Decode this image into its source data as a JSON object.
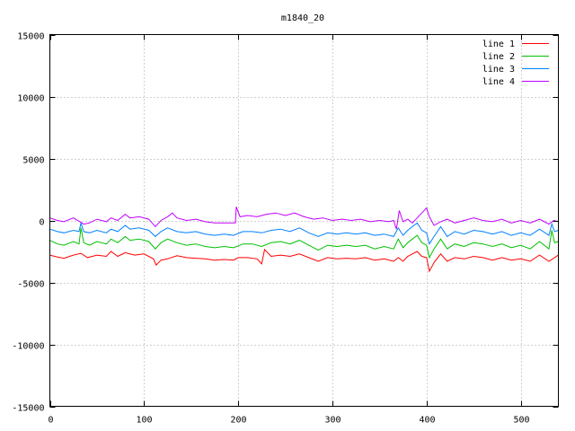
{
  "chart_data": {
    "type": "line",
    "title": "m1840_20",
    "xlabel": "",
    "ylabel": "",
    "xlim": [
      0,
      540
    ],
    "ylim": [
      -15000,
      15000
    ],
    "grid": true,
    "legend_position": "top-right",
    "x_ticks": [
      "0",
      "100",
      "200",
      "300",
      "400",
      "500"
    ],
    "y_ticks": [
      "15000",
      "10000",
      "5000",
      "0",
      "-5000",
      "-10000",
      "-15000"
    ],
    "x_tick_values": [
      0,
      100,
      200,
      300,
      400,
      500
    ],
    "y_tick_values": [
      15000,
      10000,
      5000,
      0,
      -5000,
      -10000,
      -15000
    ],
    "series": [
      {
        "name": "line 1",
        "color": "#ff0000",
        "points": [
          [
            0,
            -2800
          ],
          [
            8,
            -2950
          ],
          [
            15,
            -3050
          ],
          [
            25,
            -2800
          ],
          [
            33,
            -2650
          ],
          [
            40,
            -3000
          ],
          [
            50,
            -2800
          ],
          [
            60,
            -2900
          ],
          [
            65,
            -2500
          ],
          [
            72,
            -2900
          ],
          [
            80,
            -2600
          ],
          [
            90,
            -2800
          ],
          [
            100,
            -2700
          ],
          [
            110,
            -3100
          ],
          [
            113,
            -3600
          ],
          [
            118,
            -3200
          ],
          [
            125,
            -3100
          ],
          [
            135,
            -2850
          ],
          [
            145,
            -3000
          ],
          [
            155,
            -3050
          ],
          [
            165,
            -3100
          ],
          [
            175,
            -3200
          ],
          [
            185,
            -3150
          ],
          [
            195,
            -3200
          ],
          [
            200,
            -3000
          ],
          [
            210,
            -3000
          ],
          [
            220,
            -3100
          ],
          [
            225,
            -3500
          ],
          [
            228,
            -2350
          ],
          [
            235,
            -2900
          ],
          [
            245,
            -2800
          ],
          [
            255,
            -2900
          ],
          [
            265,
            -2700
          ],
          [
            275,
            -3000
          ],
          [
            285,
            -3300
          ],
          [
            295,
            -3000
          ],
          [
            305,
            -3100
          ],
          [
            315,
            -3050
          ],
          [
            325,
            -3100
          ],
          [
            335,
            -3000
          ],
          [
            345,
            -3200
          ],
          [
            355,
            -3100
          ],
          [
            365,
            -3300
          ],
          [
            370,
            -3000
          ],
          [
            375,
            -3300
          ],
          [
            380,
            -2900
          ],
          [
            385,
            -2700
          ],
          [
            390,
            -2500
          ],
          [
            395,
            -2900
          ],
          [
            400,
            -3000
          ],
          [
            403,
            -4100
          ],
          [
            408,
            -3400
          ],
          [
            415,
            -2700
          ],
          [
            422,
            -3300
          ],
          [
            430,
            -3000
          ],
          [
            440,
            -3100
          ],
          [
            450,
            -2900
          ],
          [
            460,
            -3000
          ],
          [
            470,
            -3200
          ],
          [
            480,
            -3000
          ],
          [
            490,
            -3200
          ],
          [
            500,
            -3100
          ],
          [
            510,
            -3300
          ],
          [
            520,
            -2800
          ],
          [
            530,
            -3300
          ],
          [
            540,
            -2800
          ]
        ]
      },
      {
        "name": "line 2",
        "color": "#00c000",
        "points": [
          [
            0,
            -1600
          ],
          [
            8,
            -1900
          ],
          [
            15,
            -2000
          ],
          [
            25,
            -1700
          ],
          [
            31,
            -1900
          ],
          [
            33,
            -600
          ],
          [
            36,
            -1800
          ],
          [
            42,
            -2000
          ],
          [
            50,
            -1700
          ],
          [
            60,
            -1900
          ],
          [
            65,
            -1500
          ],
          [
            72,
            -1800
          ],
          [
            80,
            -1300
          ],
          [
            85,
            -1600
          ],
          [
            95,
            -1500
          ],
          [
            105,
            -1700
          ],
          [
            112,
            -2300
          ],
          [
            118,
            -1800
          ],
          [
            125,
            -1500
          ],
          [
            135,
            -1800
          ],
          [
            145,
            -2000
          ],
          [
            155,
            -1900
          ],
          [
            165,
            -2100
          ],
          [
            175,
            -2200
          ],
          [
            185,
            -2100
          ],
          [
            195,
            -2200
          ],
          [
            205,
            -1900
          ],
          [
            215,
            -1900
          ],
          [
            225,
            -2100
          ],
          [
            235,
            -1800
          ],
          [
            245,
            -1700
          ],
          [
            255,
            -1900
          ],
          [
            265,
            -1600
          ],
          [
            275,
            -2000
          ],
          [
            285,
            -2400
          ],
          [
            295,
            -2000
          ],
          [
            305,
            -2100
          ],
          [
            315,
            -2000
          ],
          [
            325,
            -2100
          ],
          [
            335,
            -2000
          ],
          [
            345,
            -2300
          ],
          [
            355,
            -2100
          ],
          [
            365,
            -2300
          ],
          [
            370,
            -1500
          ],
          [
            375,
            -2200
          ],
          [
            380,
            -1800
          ],
          [
            385,
            -1500
          ],
          [
            390,
            -1200
          ],
          [
            395,
            -1800
          ],
          [
            400,
            -2000
          ],
          [
            403,
            -3000
          ],
          [
            408,
            -2300
          ],
          [
            415,
            -1500
          ],
          [
            422,
            -2300
          ],
          [
            430,
            -1900
          ],
          [
            440,
            -2100
          ],
          [
            450,
            -1800
          ],
          [
            460,
            -1900
          ],
          [
            470,
            -2100
          ],
          [
            480,
            -1900
          ],
          [
            490,
            -2200
          ],
          [
            500,
            -2000
          ],
          [
            510,
            -2300
          ],
          [
            520,
            -1700
          ],
          [
            530,
            -2300
          ],
          [
            533,
            -800
          ],
          [
            536,
            -1800
          ],
          [
            540,
            -1700
          ]
        ]
      },
      {
        "name": "line 3",
        "color": "#0080ff",
        "points": [
          [
            0,
            -700
          ],
          [
            8,
            -900
          ],
          [
            15,
            -1000
          ],
          [
            25,
            -800
          ],
          [
            31,
            -900
          ],
          [
            33,
            -200
          ],
          [
            36,
            -900
          ],
          [
            42,
            -1000
          ],
          [
            50,
            -800
          ],
          [
            60,
            -1000
          ],
          [
            65,
            -700
          ],
          [
            72,
            -900
          ],
          [
            80,
            -400
          ],
          [
            85,
            -700
          ],
          [
            95,
            -600
          ],
          [
            105,
            -800
          ],
          [
            112,
            -1300
          ],
          [
            118,
            -900
          ],
          [
            125,
            -600
          ],
          [
            135,
            -900
          ],
          [
            145,
            -1000
          ],
          [
            155,
            -900
          ],
          [
            165,
            -1100
          ],
          [
            175,
            -1200
          ],
          [
            185,
            -1100
          ],
          [
            195,
            -1200
          ],
          [
            205,
            -900
          ],
          [
            215,
            -900
          ],
          [
            225,
            -1000
          ],
          [
            235,
            -800
          ],
          [
            245,
            -700
          ],
          [
            255,
            -900
          ],
          [
            265,
            -600
          ],
          [
            275,
            -1000
          ],
          [
            285,
            -1300
          ],
          [
            295,
            -1000
          ],
          [
            305,
            -1100
          ],
          [
            315,
            -1000
          ],
          [
            325,
            -1100
          ],
          [
            335,
            -1000
          ],
          [
            345,
            -1200
          ],
          [
            355,
            -1100
          ],
          [
            365,
            -1300
          ],
          [
            370,
            -600
          ],
          [
            375,
            -1200
          ],
          [
            380,
            -800
          ],
          [
            385,
            -500
          ],
          [
            390,
            -200
          ],
          [
            395,
            -800
          ],
          [
            400,
            -1000
          ],
          [
            403,
            -1900
          ],
          [
            408,
            -1300
          ],
          [
            415,
            -500
          ],
          [
            422,
            -1300
          ],
          [
            430,
            -900
          ],
          [
            440,
            -1100
          ],
          [
            450,
            -800
          ],
          [
            460,
            -900
          ],
          [
            470,
            -1100
          ],
          [
            480,
            -900
          ],
          [
            490,
            -1200
          ],
          [
            500,
            -1000
          ],
          [
            510,
            -1200
          ],
          [
            520,
            -700
          ],
          [
            530,
            -1200
          ],
          [
            533,
            -300
          ],
          [
            536,
            -900
          ],
          [
            540,
            -800
          ]
        ]
      },
      {
        "name": "line 4",
        "color": "#c000ff",
        "points": [
          [
            0,
            200
          ],
          [
            8,
            0
          ],
          [
            15,
            -100
          ],
          [
            25,
            200
          ],
          [
            32,
            -100
          ],
          [
            36,
            -300
          ],
          [
            42,
            -200
          ],
          [
            50,
            100
          ],
          [
            60,
            -100
          ],
          [
            65,
            200
          ],
          [
            72,
            0
          ],
          [
            80,
            500
          ],
          [
            85,
            200
          ],
          [
            95,
            300
          ],
          [
            105,
            100
          ],
          [
            112,
            -500
          ],
          [
            118,
            0
          ],
          [
            125,
            300
          ],
          [
            130,
            600
          ],
          [
            135,
            200
          ],
          [
            145,
            0
          ],
          [
            155,
            100
          ],
          [
            165,
            -100
          ],
          [
            175,
            -200
          ],
          [
            180,
            -200
          ],
          [
            197,
            -200
          ],
          [
            198,
            1100
          ],
          [
            202,
            300
          ],
          [
            210,
            400
          ],
          [
            220,
            300
          ],
          [
            230,
            500
          ],
          [
            240,
            600
          ],
          [
            250,
            400
          ],
          [
            260,
            600
          ],
          [
            270,
            300
          ],
          [
            280,
            100
          ],
          [
            290,
            200
          ],
          [
            300,
            0
          ],
          [
            310,
            100
          ],
          [
            320,
            0
          ],
          [
            330,
            100
          ],
          [
            340,
            -100
          ],
          [
            350,
            0
          ],
          [
            360,
            -100
          ],
          [
            365,
            0
          ],
          [
            368,
            -700
          ],
          [
            371,
            800
          ],
          [
            375,
            -100
          ],
          [
            380,
            100
          ],
          [
            385,
            -200
          ],
          [
            390,
            200
          ],
          [
            395,
            600
          ],
          [
            400,
            1000
          ],
          [
            403,
            300
          ],
          [
            408,
            -400
          ],
          [
            415,
            -100
          ],
          [
            422,
            100
          ],
          [
            430,
            -200
          ],
          [
            440,
            0
          ],
          [
            450,
            200
          ],
          [
            460,
            0
          ],
          [
            470,
            -100
          ],
          [
            480,
            100
          ],
          [
            490,
            -200
          ],
          [
            500,
            0
          ],
          [
            510,
            -200
          ],
          [
            520,
            100
          ],
          [
            530,
            -300
          ],
          [
            535,
            0
          ],
          [
            540,
            -100
          ]
        ]
      }
    ]
  }
}
